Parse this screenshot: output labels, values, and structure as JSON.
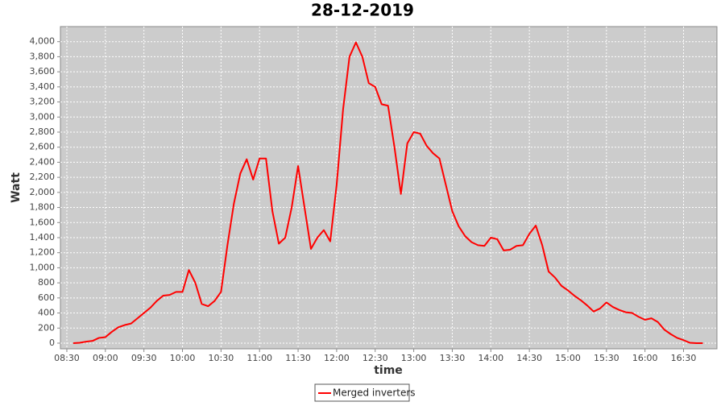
{
  "chart_data": {
    "type": "line",
    "title": "28-12-2019",
    "x_label": "time",
    "y_label": "Watt",
    "x": [
      "08:35",
      "08:40",
      "08:45",
      "08:50",
      "08:55",
      "09:00",
      "09:05",
      "09:10",
      "09:15",
      "09:20",
      "09:25",
      "09:30",
      "09:35",
      "09:40",
      "09:45",
      "09:50",
      "09:55",
      "10:00",
      "10:05",
      "10:10",
      "10:15",
      "10:20",
      "10:25",
      "10:30",
      "10:35",
      "10:40",
      "10:45",
      "10:50",
      "10:55",
      "11:00",
      "11:05",
      "11:10",
      "11:15",
      "11:20",
      "11:25",
      "11:30",
      "11:35",
      "11:40",
      "11:45",
      "11:50",
      "11:55",
      "12:00",
      "12:05",
      "12:10",
      "12:15",
      "12:20",
      "12:25",
      "12:30",
      "12:35",
      "12:40",
      "12:45",
      "12:50",
      "12:55",
      "13:00",
      "13:05",
      "13:10",
      "13:15",
      "13:20",
      "13:25",
      "13:30",
      "13:35",
      "13:40",
      "13:45",
      "13:50",
      "13:55",
      "14:00",
      "14:05",
      "14:10",
      "14:15",
      "14:20",
      "14:25",
      "14:30",
      "14:35",
      "14:40",
      "14:45",
      "14:50",
      "14:55",
      "15:00",
      "15:05",
      "15:10",
      "15:15",
      "15:20",
      "15:25",
      "15:30",
      "15:35",
      "15:40",
      "15:45",
      "15:50",
      "15:55",
      "16:00",
      "16:05",
      "16:10",
      "16:15",
      "16:20",
      "16:25",
      "16:30",
      "16:35",
      "16:40",
      "16:45"
    ],
    "series": [
      {
        "name": "Merged inverters",
        "color": "#ff0000",
        "values": [
          0,
          5,
          20,
          30,
          70,
          80,
          150,
          210,
          240,
          260,
          330,
          400,
          470,
          560,
          630,
          640,
          680,
          680,
          970,
          800,
          520,
          490,
          560,
          680,
          1300,
          1850,
          2250,
          2440,
          2170,
          2450,
          2450,
          1750,
          1320,
          1400,
          1800,
          2350,
          1800,
          1250,
          1400,
          1500,
          1350,
          2100,
          3100,
          3800,
          3990,
          3800,
          3450,
          3400,
          3170,
          3150,
          2600,
          1980,
          2650,
          2800,
          2780,
          2620,
          2520,
          2450,
          2100,
          1750,
          1550,
          1420,
          1340,
          1300,
          1290,
          1400,
          1380,
          1230,
          1240,
          1290,
          1300,
          1450,
          1560,
          1300,
          950,
          870,
          760,
          700,
          630,
          570,
          500,
          420,
          460,
          540,
          480,
          440,
          410,
          400,
          350,
          310,
          330,
          280,
          180,
          120,
          70,
          40,
          5,
          0,
          0
        ]
      }
    ],
    "xlim": [
      "08:25",
      "16:56"
    ],
    "xticks": [
      "08:30",
      "09:00",
      "09:30",
      "10:00",
      "10:30",
      "11:00",
      "11:30",
      "12:00",
      "12:30",
      "13:00",
      "13:30",
      "14:00",
      "14:30",
      "15:00",
      "15:30",
      "16:00",
      "16:30"
    ],
    "ylim": [
      -75,
      4200
    ],
    "yticks": [
      0,
      200,
      400,
      600,
      800,
      {
        "value": 1000,
        "label": "1,000"
      },
      {
        "value": 1200,
        "label": "1,200"
      },
      {
        "value": 1400,
        "label": "1,400"
      },
      {
        "value": 1600,
        "label": "1,600"
      },
      {
        "value": 1800,
        "label": "1,800"
      },
      {
        "value": 2000,
        "label": "2,000"
      },
      {
        "value": 2200,
        "label": "2,200"
      },
      {
        "value": 2400,
        "label": "2,400"
      },
      {
        "value": 2600,
        "label": "2,600"
      },
      {
        "value": 2800,
        "label": "2,800"
      },
      {
        "value": 3000,
        "label": "3,000"
      },
      {
        "value": 3200,
        "label": "3,200"
      },
      {
        "value": 3400,
        "label": "3,400"
      },
      {
        "value": 3600,
        "label": "3,600"
      },
      {
        "value": 3800,
        "label": "3,800"
      },
      {
        "value": 4000,
        "label": "4,000"
      }
    ],
    "grid": true,
    "legend": "bottom"
  }
}
